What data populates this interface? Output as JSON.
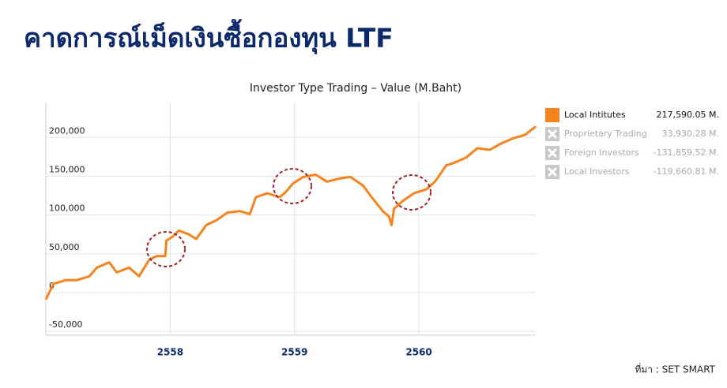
{
  "header": {
    "title": "คาดการณ์เม็ดเงินซื้อกองทุน LTF"
  },
  "chart_data": {
    "type": "line",
    "title": "Investor Type Trading – Value (M.Baht)",
    "x": [
      2557.0,
      2557.06,
      2557.16,
      2557.25,
      2557.35,
      2557.41,
      2557.51,
      2557.57,
      2557.67,
      2557.75,
      2557.83,
      2557.89,
      2557.96,
      2557.97,
      2558.02,
      2558.07,
      2558.15,
      2558.21,
      2558.29,
      2558.37,
      2558.46,
      2558.56,
      2558.64,
      2558.69,
      2558.78,
      2558.88,
      2558.92,
      2558.99,
      2559.07,
      2559.17,
      2559.26,
      2559.36,
      2559.45,
      2559.55,
      2559.62,
      2559.71,
      2559.76,
      2559.78,
      2559.8,
      2559.87,
      2559.96,
      2560.06,
      2560.13,
      2560.22,
      2560.28,
      2560.38,
      2560.47,
      2560.57,
      2560.66,
      2560.76,
      2560.85,
      2560.94
    ],
    "series": [
      {
        "name": "Local Intitutes",
        "color": "#f7831e",
        "total": "217,590.05 M.",
        "values": [
          -9000,
          11000,
          16000,
          16000,
          21000,
          32000,
          39000,
          26000,
          32000,
          21000,
          42000,
          47000,
          47000,
          67000,
          72000,
          80000,
          75000,
          69000,
          87000,
          93000,
          103000,
          105000,
          101000,
          123000,
          128000,
          123000,
          128000,
          141000,
          149000,
          152000,
          143000,
          147000,
          149000,
          138000,
          123000,
          105000,
          98000,
          87000,
          108000,
          118000,
          128000,
          133000,
          143000,
          164000,
          167000,
          174000,
          186000,
          184000,
          192000,
          199000,
          203000,
          214000
        ]
      }
    ],
    "hidden_series": [
      {
        "name": "Proprietary Trading",
        "total": "33,930.28 M."
      },
      {
        "name": "Foreign Investors",
        "total": "-131,859.52 M."
      },
      {
        "name": "Local Investors",
        "total": "-119,660.81 M."
      }
    ],
    "xlim": [
      2557.0,
      2560.94
    ],
    "xticks": [
      2558,
      2559,
      2560
    ],
    "ylim": [
      -55000,
      245000
    ],
    "yticks": [
      {
        "value": -50000,
        "label": "-50,000"
      },
      0,
      {
        "value": 50000,
        "label": "50,000"
      },
      {
        "value": 100000,
        "label": "100,000"
      },
      {
        "value": 150000,
        "label": "150,000"
      },
      {
        "value": 200000,
        "label": "200,000"
      }
    ],
    "grid": true
  },
  "footer": {
    "source": "ที่มา : SET SMART"
  }
}
